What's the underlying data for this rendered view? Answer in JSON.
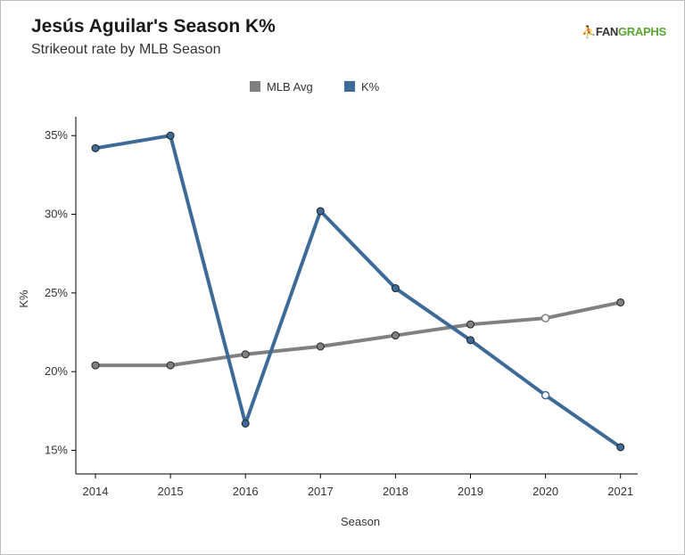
{
  "header": {
    "title": "Jesús Aguilar's Season K%",
    "subtitle": "Strikeout rate by MLB Season",
    "logo_text_a": "FAN",
    "logo_text_b": "GRAPHS"
  },
  "colors": {
    "mlb_avg": "#808080",
    "k_pct": "#3d6a97",
    "logo_green": "#59a632",
    "axis": "#000000"
  },
  "chart_data": {
    "type": "line",
    "xlabel": "Season",
    "ylabel": "K%",
    "x": [
      2014,
      2015,
      2016,
      2017,
      2018,
      2019,
      2020,
      2021
    ],
    "ylim": [
      13.5,
      36.2
    ],
    "yticks": [
      15,
      20,
      25,
      30,
      35
    ],
    "ytick_labels": [
      "15%",
      "20%",
      "25%",
      "30%",
      "35%"
    ],
    "grid": false,
    "legend_position": "top-center",
    "series": [
      {
        "name": "MLB Avg",
        "color": "#808080",
        "values": [
          20.4,
          20.4,
          21.1,
          21.6,
          22.3,
          23.0,
          23.4,
          24.4
        ],
        "hollow_points": [
          2020
        ]
      },
      {
        "name": "K%",
        "color": "#3d6a97",
        "values": [
          34.2,
          35.0,
          16.7,
          30.2,
          25.3,
          22.0,
          18.5,
          15.2
        ],
        "hollow_points": [
          2020
        ]
      }
    ]
  }
}
